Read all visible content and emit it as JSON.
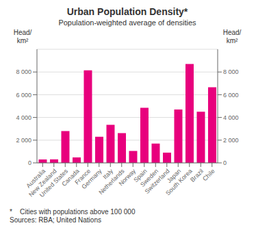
{
  "chart_data": {
    "type": "bar",
    "title": "Urban Population Density*",
    "subtitle": "Population-weighted average of densities",
    "ylabel": "Head/\nkm²",
    "y2label": "Head/\nkm²",
    "annotations": [
      "*    Cities with populations above 100 000",
      "Sources: RBA; United Nations"
    ],
    "categories": [
      "Australia",
      "New Zealand",
      "United States",
      "Canada",
      "France",
      "Germany",
      "Italy",
      "Netherlands",
      "Norway",
      "Spain",
      "Sweden",
      "Switzerland",
      "Japan",
      "South Korea",
      "Brazil",
      "Chile"
    ],
    "values": [
      300,
      310,
      2800,
      480,
      8150,
      2300,
      3350,
      2620,
      1050,
      4850,
      1700,
      900,
      4700,
      8700,
      4500,
      6650
    ],
    "color": "#E8007D",
    "ylim": [
      0,
      10000
    ],
    "yticks": [
      0,
      {
        "value": 2000,
        "label": "2 000"
      },
      {
        "value": 4000,
        "label": "4 000"
      },
      {
        "value": 6000,
        "label": "6 000"
      },
      {
        "value": 8000,
        "label": "8 000"
      }
    ],
    "y2lim": [
      0,
      10000
    ],
    "y2ticks": [
      0,
      {
        "value": 2000,
        "label": "2 000"
      },
      {
        "value": 4000,
        "label": "4 000"
      },
      {
        "value": 6000,
        "label": "6 000"
      },
      {
        "value": 8000,
        "label": "8 000"
      }
    ],
    "grid": true
  }
}
